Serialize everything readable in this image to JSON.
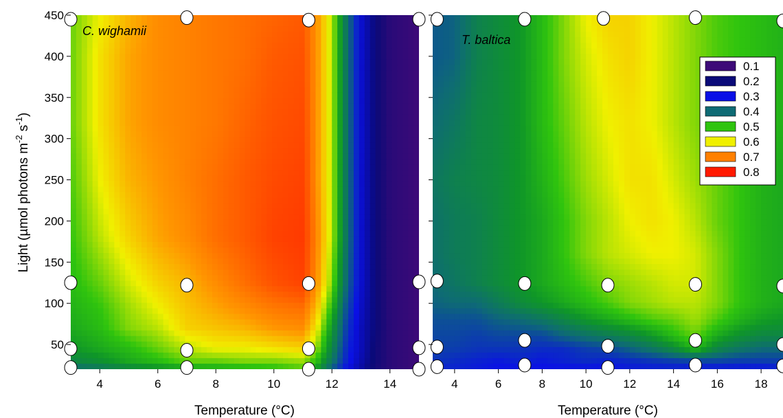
{
  "chart_data": [
    {
      "type": "heatmap",
      "panel_label": "C. wighamii",
      "xlabel": "Temperature (°C)",
      "ylabel_main": "Light (µmol photons m",
      "ylabel_sup1": "-2",
      "ylabel_mid": " s",
      "ylabel_sup2": "-1",
      "ylabel_end": ")",
      "xlim": [
        3,
        15
      ],
      "ylim": [
        20,
        450
      ],
      "x_ticks": [
        4,
        6,
        8,
        10,
        12,
        14
      ],
      "y_ticks": [
        50,
        100,
        150,
        200,
        250,
        300,
        350,
        400,
        450
      ],
      "grid_x": [
        3,
        4,
        5,
        6,
        7,
        8,
        9,
        10,
        11,
        11.5,
        12,
        12.5,
        13,
        13.5,
        14,
        15
      ],
      "grid_y": [
        20,
        30,
        45,
        70,
        95,
        125,
        180,
        250,
        320,
        400,
        450
      ],
      "z": [
        [
          0.4,
          0.42,
          0.45,
          0.47,
          0.49,
          0.5,
          0.51,
          0.52,
          0.54,
          0.48,
          0.38,
          0.3,
          0.24,
          0.18,
          0.14,
          0.1
        ],
        [
          0.45,
          0.47,
          0.5,
          0.52,
          0.55,
          0.55,
          0.56,
          0.56,
          0.57,
          0.52,
          0.42,
          0.32,
          0.25,
          0.19,
          0.14,
          0.1
        ],
        [
          0.48,
          0.5,
          0.52,
          0.55,
          0.58,
          0.6,
          0.6,
          0.61,
          0.62,
          0.56,
          0.45,
          0.33,
          0.26,
          0.19,
          0.14,
          0.1
        ],
        [
          0.5,
          0.52,
          0.56,
          0.58,
          0.62,
          0.63,
          0.64,
          0.66,
          0.67,
          0.6,
          0.48,
          0.35,
          0.26,
          0.2,
          0.14,
          0.1
        ],
        [
          0.51,
          0.53,
          0.57,
          0.6,
          0.63,
          0.65,
          0.67,
          0.69,
          0.7,
          0.63,
          0.52,
          0.37,
          0.27,
          0.2,
          0.14,
          0.1
        ],
        [
          0.52,
          0.55,
          0.59,
          0.62,
          0.64,
          0.67,
          0.7,
          0.73,
          0.75,
          0.66,
          0.56,
          0.4,
          0.28,
          0.2,
          0.14,
          0.1
        ],
        [
          0.53,
          0.58,
          0.62,
          0.65,
          0.67,
          0.7,
          0.72,
          0.75,
          0.76,
          0.67,
          0.58,
          0.42,
          0.28,
          0.2,
          0.14,
          0.1
        ],
        [
          0.54,
          0.6,
          0.64,
          0.66,
          0.68,
          0.7,
          0.72,
          0.74,
          0.75,
          0.66,
          0.58,
          0.42,
          0.28,
          0.2,
          0.14,
          0.1
        ],
        [
          0.55,
          0.61,
          0.65,
          0.67,
          0.68,
          0.69,
          0.71,
          0.73,
          0.74,
          0.66,
          0.58,
          0.42,
          0.28,
          0.2,
          0.14,
          0.1
        ],
        [
          0.55,
          0.61,
          0.65,
          0.67,
          0.68,
          0.69,
          0.7,
          0.72,
          0.73,
          0.66,
          0.58,
          0.42,
          0.28,
          0.2,
          0.14,
          0.1
        ],
        [
          0.55,
          0.6,
          0.64,
          0.67,
          0.68,
          0.69,
          0.7,
          0.71,
          0.72,
          0.66,
          0.58,
          0.42,
          0.28,
          0.2,
          0.14,
          0.1
        ]
      ],
      "points": [
        {
          "x": 3,
          "y": 22
        },
        {
          "x": 3,
          "y": 45
        },
        {
          "x": 3,
          "y": 125
        },
        {
          "x": 3,
          "y": 445
        },
        {
          "x": 7,
          "y": 22
        },
        {
          "x": 7,
          "y": 43
        },
        {
          "x": 7,
          "y": 122
        },
        {
          "x": 7,
          "y": 447
        },
        {
          "x": 11.2,
          "y": 20
        },
        {
          "x": 11.2,
          "y": 45
        },
        {
          "x": 11.2,
          "y": 124
        },
        {
          "x": 11.2,
          "y": 444
        },
        {
          "x": 15,
          "y": 20
        },
        {
          "x": 15,
          "y": 46
        },
        {
          "x": 15,
          "y": 126
        },
        {
          "x": 15,
          "y": 445
        }
      ]
    },
    {
      "type": "heatmap",
      "panel_label": "T. baltica",
      "xlabel": "Temperature (°C)",
      "xlim": [
        3,
        19
      ],
      "ylim": [
        20,
        450
      ],
      "x_ticks": [
        4,
        6,
        8,
        10,
        12,
        14,
        16,
        18
      ],
      "y_ticks": [
        50,
        100,
        150,
        200,
        250,
        300,
        350,
        400,
        450
      ],
      "grid_x": [
        3,
        4,
        5,
        6,
        7,
        8,
        9,
        10,
        11,
        12,
        13,
        14,
        15,
        16,
        17,
        18,
        19
      ],
      "grid_y": [
        20,
        30,
        45,
        60,
        80,
        100,
        125,
        160,
        200,
        250,
        320,
        400,
        450
      ],
      "z": [
        [
          0.32,
          0.32,
          0.31,
          0.3,
          0.3,
          0.3,
          0.3,
          0.3,
          0.3,
          0.31,
          0.31,
          0.31,
          0.3,
          0.3,
          0.3,
          0.3,
          0.31
        ],
        [
          0.34,
          0.33,
          0.32,
          0.31,
          0.32,
          0.31,
          0.32,
          0.33,
          0.32,
          0.33,
          0.34,
          0.35,
          0.36,
          0.36,
          0.35,
          0.35,
          0.35
        ],
        [
          0.35,
          0.35,
          0.34,
          0.34,
          0.34,
          0.33,
          0.33,
          0.35,
          0.36,
          0.39,
          0.42,
          0.46,
          0.52,
          0.45,
          0.42,
          0.4,
          0.4
        ],
        [
          0.36,
          0.36,
          0.35,
          0.36,
          0.36,
          0.36,
          0.39,
          0.41,
          0.43,
          0.45,
          0.48,
          0.52,
          0.55,
          0.5,
          0.47,
          0.45,
          0.45
        ],
        [
          0.37,
          0.37,
          0.37,
          0.39,
          0.4,
          0.42,
          0.45,
          0.48,
          0.5,
          0.52,
          0.54,
          0.55,
          0.57,
          0.54,
          0.51,
          0.49,
          0.48
        ],
        [
          0.39,
          0.4,
          0.4,
          0.43,
          0.46,
          0.48,
          0.5,
          0.52,
          0.54,
          0.56,
          0.57,
          0.58,
          0.58,
          0.56,
          0.53,
          0.51,
          0.5
        ],
        [
          0.4,
          0.42,
          0.44,
          0.46,
          0.48,
          0.5,
          0.52,
          0.54,
          0.56,
          0.57,
          0.58,
          0.59,
          0.59,
          0.56,
          0.53,
          0.51,
          0.5
        ],
        [
          0.41,
          0.43,
          0.44,
          0.46,
          0.48,
          0.5,
          0.53,
          0.56,
          0.58,
          0.59,
          0.6,
          0.6,
          0.59,
          0.56,
          0.53,
          0.51,
          0.5
        ],
        [
          0.41,
          0.43,
          0.44,
          0.46,
          0.48,
          0.5,
          0.53,
          0.56,
          0.58,
          0.6,
          0.61,
          0.6,
          0.58,
          0.55,
          0.53,
          0.51,
          0.5
        ],
        [
          0.42,
          0.44,
          0.45,
          0.46,
          0.48,
          0.51,
          0.54,
          0.57,
          0.59,
          0.61,
          0.61,
          0.59,
          0.57,
          0.55,
          0.53,
          0.51,
          0.5
        ],
        [
          0.4,
          0.42,
          0.45,
          0.46,
          0.48,
          0.52,
          0.55,
          0.58,
          0.6,
          0.61,
          0.6,
          0.58,
          0.56,
          0.55,
          0.53,
          0.52,
          0.51
        ],
        [
          0.38,
          0.39,
          0.44,
          0.46,
          0.48,
          0.52,
          0.56,
          0.59,
          0.61,
          0.62,
          0.6,
          0.58,
          0.56,
          0.54,
          0.53,
          0.52,
          0.51
        ],
        [
          0.38,
          0.39,
          0.44,
          0.46,
          0.48,
          0.52,
          0.56,
          0.6,
          0.62,
          0.62,
          0.6,
          0.58,
          0.56,
          0.54,
          0.53,
          0.52,
          0.51
        ]
      ],
      "points": [
        {
          "x": 3.2,
          "y": 23
        },
        {
          "x": 3.2,
          "y": 47
        },
        {
          "x": 3.2,
          "y": 127
        },
        {
          "x": 3.2,
          "y": 445
        },
        {
          "x": 7.2,
          "y": 25
        },
        {
          "x": 7.2,
          "y": 55
        },
        {
          "x": 7.2,
          "y": 124
        },
        {
          "x": 7.2,
          "y": 445
        },
        {
          "x": 11,
          "y": 22
        },
        {
          "x": 11,
          "y": 48
        },
        {
          "x": 11,
          "y": 122
        },
        {
          "x": 10.8,
          "y": 446
        },
        {
          "x": 15,
          "y": 25
        },
        {
          "x": 15,
          "y": 55
        },
        {
          "x": 15,
          "y": 123
        },
        {
          "x": 15,
          "y": 447
        },
        {
          "x": 19,
          "y": 24
        },
        {
          "x": 19,
          "y": 50
        },
        {
          "x": 19,
          "y": 121
        },
        {
          "x": 19,
          "y": 443
        }
      ]
    }
  ],
  "legend": {
    "placement": "top-right of right panel",
    "entries": [
      {
        "label": "0.1",
        "color": "#3d0a78"
      },
      {
        "label": "0.2",
        "color": "#0a0a78"
      },
      {
        "label": "0.3",
        "color": "#0a10e6"
      },
      {
        "label": "0.4",
        "color": "#0e6b74"
      },
      {
        "label": "0.5",
        "color": "#2fc40e"
      },
      {
        "label": "0.6",
        "color": "#f0f000"
      },
      {
        "label": "0.7",
        "color": "#ff8000"
      },
      {
        "label": "0.8",
        "color": "#ff1a00"
      }
    ]
  },
  "colors": {
    "background": "#ffffff",
    "marker_fill": "#ffffff",
    "marker_stroke": "#000000"
  }
}
